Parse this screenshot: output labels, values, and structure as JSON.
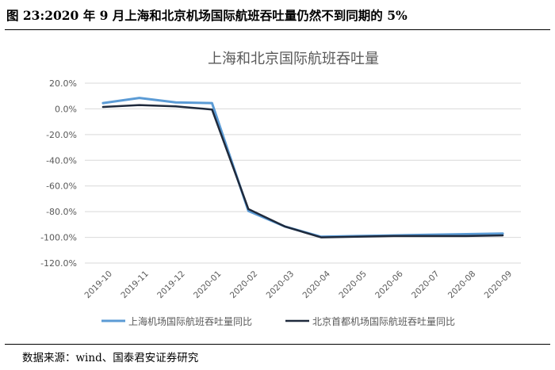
{
  "figure": {
    "title": "图 23:2020 年 9 月上海和北京机场国际航班吞吐量仍然不到同期的 5%",
    "source": "数据来源：wind、国泰君安证券研究"
  },
  "colors": {
    "series_shanghai": "#5b9bd5",
    "series_beijing": "#1f2a3c",
    "grid": "#d9d9d9",
    "text": "#595959"
  },
  "chart_data": {
    "type": "line",
    "title": "上海和北京国际航班吞吐量",
    "categories": [
      "2019-10",
      "2019-11",
      "2019-12",
      "2020-01",
      "2020-02",
      "2020-03",
      "2020-04",
      "2020-05",
      "2020-06",
      "2020-07",
      "2020-08",
      "2020-09"
    ],
    "series": [
      {
        "name": "上海机场国际航班吞吐量同比",
        "values": [
          4.5,
          8.5,
          5.0,
          4.5,
          -79.5,
          -91.5,
          -99.5,
          -99.0,
          -98.5,
          -98.0,
          -97.5,
          -97.0
        ]
      },
      {
        "name": "北京首都机场国际航班吞吐量同比",
        "values": [
          1.5,
          3.0,
          2.0,
          -0.5,
          -78.0,
          -91.5,
          -100.0,
          -99.5,
          -99.0,
          -99.0,
          -99.0,
          -98.5
        ]
      }
    ],
    "y_ticks": [
      20,
      0,
      -20,
      -40,
      -60,
      -80,
      -100,
      -120
    ],
    "y_tick_labels": [
      "20.0%",
      "0.0%",
      "-20.0%",
      "-40.0%",
      "-60.0%",
      "-80.0%",
      "-100.0%",
      "-120.0%"
    ],
    "ylim": [
      -120,
      20
    ],
    "grid": true,
    "legend_position": "bottom"
  }
}
